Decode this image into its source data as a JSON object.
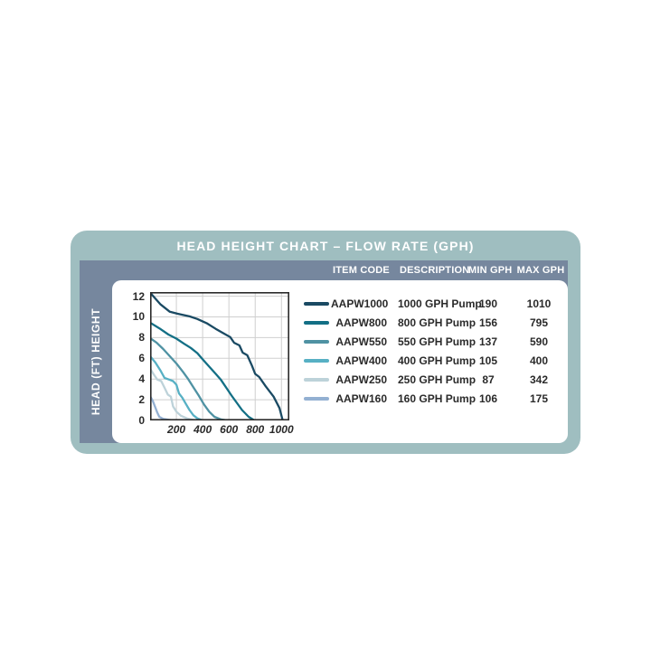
{
  "panel": {
    "title": "HEAD HEIGHT CHART – FLOW RATE (GPH)",
    "sidebar_label": "HEAD (FT) HEIGHT",
    "colors": {
      "frame": "#9fbec0",
      "band": "#76879e",
      "card": "#ffffff",
      "title_text": "#ffffff",
      "code_text": "#1c4668",
      "body_text": "#232021"
    }
  },
  "table": {
    "headers": [
      "ITEM CODE",
      "DESCRIPTION",
      "MIN GPH",
      "MAX GPH"
    ],
    "rows": [
      {
        "item_code": "AAPW1000",
        "description": "1000 GPH Pump",
        "min_gph": "190",
        "max_gph": "1010",
        "color": "#1a4a63"
      },
      {
        "item_code": "AAPW800",
        "description": "800 GPH Pump",
        "min_gph": "156",
        "max_gph": "795",
        "color": "#136f85"
      },
      {
        "item_code": "AAPW550",
        "description": "550 GPH Pump",
        "min_gph": "137",
        "max_gph": "590",
        "color": "#4f92a3"
      },
      {
        "item_code": "AAPW400",
        "description": "400 GPH Pump",
        "min_gph": "105",
        "max_gph": "400",
        "color": "#57b0c4"
      },
      {
        "item_code": "AAPW250",
        "description": "250 GPH Pump",
        "min_gph": "87",
        "max_gph": "342",
        "color": "#bdd2d9"
      },
      {
        "item_code": "AAPW160",
        "description": "160 GPH Pump",
        "min_gph": "106",
        "max_gph": "175",
        "color": "#93b0d2"
      }
    ]
  },
  "chart_data": {
    "type": "line",
    "title": "HEAD HEIGHT CHART – FLOW RATE (GPH)",
    "xlabel": "",
    "ylabel": "HEAD (FT) HEIGHT",
    "xlim": [
      0,
      1060
    ],
    "ylim": [
      0,
      12.4
    ],
    "x_ticks": [
      200,
      400,
      600,
      800,
      1000
    ],
    "y_ticks": [
      0,
      2,
      4,
      6,
      8,
      10,
      12
    ],
    "grid": true,
    "grid_color": "#cfcfcf",
    "border_color": "#2a2a2a",
    "legend_position": "right-table",
    "series": [
      {
        "name": "AAPW1000",
        "color": "#1a4a63",
        "points": [
          [
            0,
            12.35
          ],
          [
            80,
            11.2
          ],
          [
            150,
            10.5
          ],
          [
            210,
            10.3
          ],
          [
            300,
            10.05
          ],
          [
            360,
            9.8
          ],
          [
            430,
            9.4
          ],
          [
            500,
            8.85
          ],
          [
            560,
            8.4
          ],
          [
            610,
            8.05
          ],
          [
            640,
            7.5
          ],
          [
            680,
            7.25
          ],
          [
            705,
            6.55
          ],
          [
            740,
            6.3
          ],
          [
            775,
            5.3
          ],
          [
            800,
            4.5
          ],
          [
            830,
            4.2
          ],
          [
            880,
            3.3
          ],
          [
            940,
            2.3
          ],
          [
            985,
            1.2
          ],
          [
            1010,
            0
          ]
        ]
      },
      {
        "name": "AAPW800",
        "color": "#136f85",
        "points": [
          [
            0,
            9.45
          ],
          [
            70,
            8.9
          ],
          [
            140,
            8.3
          ],
          [
            200,
            7.9
          ],
          [
            260,
            7.4
          ],
          [
            310,
            7.0
          ],
          [
            360,
            6.5
          ],
          [
            400,
            5.9
          ],
          [
            450,
            5.2
          ],
          [
            500,
            4.5
          ],
          [
            540,
            3.9
          ],
          [
            580,
            3.15
          ],
          [
            620,
            2.4
          ],
          [
            660,
            1.7
          ],
          [
            700,
            1.0
          ],
          [
            750,
            0.35
          ],
          [
            795,
            0
          ]
        ]
      },
      {
        "name": "AAPW550",
        "color": "#4f92a3",
        "points": [
          [
            0,
            7.95
          ],
          [
            50,
            7.5
          ],
          [
            100,
            6.9
          ],
          [
            150,
            6.2
          ],
          [
            200,
            5.5
          ],
          [
            250,
            4.7
          ],
          [
            290,
            4.0
          ],
          [
            330,
            3.2
          ],
          [
            370,
            2.4
          ],
          [
            410,
            1.55
          ],
          [
            450,
            0.85
          ],
          [
            490,
            0.35
          ],
          [
            540,
            0.1
          ],
          [
            590,
            0
          ]
        ]
      },
      {
        "name": "AAPW400",
        "color": "#57b0c4",
        "points": [
          [
            0,
            6.2
          ],
          [
            40,
            5.6
          ],
          [
            80,
            4.8
          ],
          [
            110,
            4.1
          ],
          [
            145,
            3.95
          ],
          [
            175,
            3.8
          ],
          [
            200,
            3.45
          ],
          [
            220,
            2.6
          ],
          [
            245,
            2.2
          ],
          [
            270,
            1.65
          ],
          [
            300,
            1.0
          ],
          [
            330,
            0.5
          ],
          [
            360,
            0.2
          ],
          [
            400,
            0
          ]
        ]
      },
      {
        "name": "AAPW250",
        "color": "#bdd2d9",
        "points": [
          [
            0,
            5.0
          ],
          [
            30,
            4.4
          ],
          [
            55,
            3.95
          ],
          [
            85,
            3.8
          ],
          [
            110,
            3.15
          ],
          [
            135,
            2.5
          ],
          [
            158,
            2.3
          ],
          [
            175,
            1.35
          ],
          [
            200,
            0.85
          ],
          [
            235,
            0.45
          ],
          [
            280,
            0.2
          ],
          [
            342,
            0
          ]
        ]
      },
      {
        "name": "AAPW160",
        "color": "#93b0d2",
        "points": [
          [
            0,
            2.35
          ],
          [
            20,
            1.9
          ],
          [
            40,
            1.25
          ],
          [
            55,
            0.75
          ],
          [
            70,
            0.35
          ],
          [
            100,
            0.15
          ],
          [
            175,
            0
          ]
        ]
      }
    ]
  }
}
